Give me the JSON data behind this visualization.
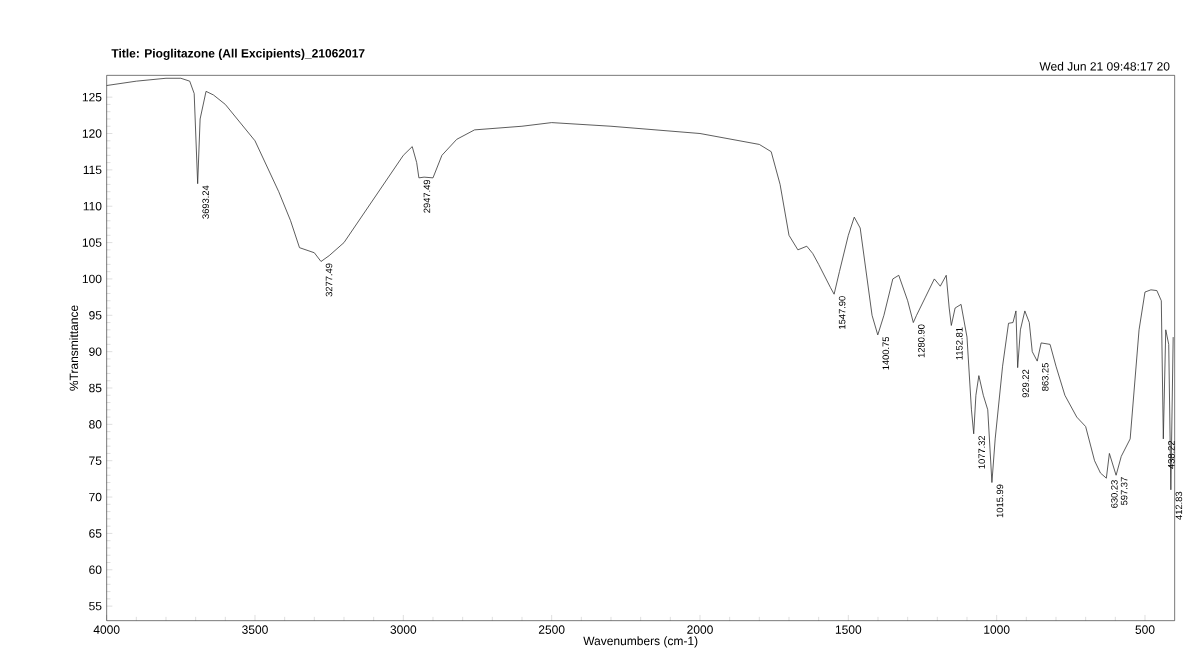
{
  "chart_data": {
    "type": "line",
    "title": "Title: Pioglitazone (All Excipients)_21062017",
    "xlabel": "Wavenumbers (cm-1)",
    "ylabel": "%Transmittance",
    "xlim": [
      4000,
      400
    ],
    "ylim": [
      53,
      128
    ],
    "xticks": [
      4000,
      3500,
      3000,
      2500,
      2000,
      1500,
      1000,
      500
    ],
    "yticks": [
      55,
      60,
      65,
      70,
      75,
      80,
      85,
      90,
      95,
      100,
      105,
      110,
      115,
      120,
      125
    ],
    "grid": false,
    "marker": "none",
    "line_style": "solid",
    "series": [
      {
        "color": "#333333",
        "x": [
          4000,
          3900,
          3800,
          3750,
          3720,
          3705,
          3693.24,
          3685,
          3665,
          3640,
          3600,
          3500,
          3420,
          3380,
          3350,
          3300,
          3277.49,
          3250,
          3200,
          3100,
          3000,
          2970,
          2955,
          2947.49,
          2930,
          2900,
          2870,
          2820,
          2760,
          2600,
          2500,
          2300,
          2000,
          1800,
          1760,
          1730,
          1700,
          1670,
          1640,
          1620,
          1600,
          1560,
          1547.9,
          1530,
          1500,
          1480,
          1460,
          1440,
          1420,
          1400.75,
          1380,
          1350,
          1330,
          1300,
          1280.9,
          1270,
          1240,
          1210,
          1190,
          1170,
          1160,
          1152.81,
          1140,
          1120,
          1100,
          1085,
          1077.32,
          1070,
          1060,
          1045,
          1030,
          1015.99,
          1005,
          980,
          960,
          945,
          935,
          929.22,
          920,
          905,
          890,
          880,
          863.25,
          850,
          820,
          800,
          770,
          730,
          700,
          670,
          650,
          630.23,
          620,
          605,
          597.37,
          580,
          550,
          520,
          500,
          480,
          460,
          445,
          438.22,
          430,
          420,
          412.83,
          405
        ],
        "values": [
          126.6,
          127.2,
          127.6,
          127.6,
          127.2,
          125.5,
          113.1,
          122,
          125.8,
          125.3,
          124,
          119,
          112,
          108,
          104.3,
          103.6,
          102.4,
          103.2,
          105,
          111,
          117,
          118.2,
          116,
          113.9,
          114,
          113.9,
          117,
          119.2,
          120.5,
          121,
          121.5,
          121,
          120,
          118.5,
          117.5,
          113,
          106,
          104,
          104.5,
          103.5,
          102,
          98.8,
          97.9,
          101,
          106,
          108.5,
          107,
          101,
          95,
          92.3,
          95,
          100,
          100.5,
          97,
          94,
          95,
          97.5,
          100,
          99,
          100.5,
          96,
          93.6,
          96,
          96.5,
          92,
          82,
          78.7,
          84,
          86.7,
          84,
          82,
          72,
          78,
          88,
          93.9,
          94,
          95.6,
          87.8,
          93,
          95.6,
          94,
          90,
          88.7,
          91.2,
          91,
          88,
          84,
          81,
          79.7,
          75,
          73.3,
          72.6,
          76,
          74,
          73,
          75.6,
          78,
          93,
          98.2,
          98.5,
          98.4,
          97,
          78,
          93,
          91,
          71,
          92
        ]
      }
    ],
    "annotations": [
      "Wed Jun 21 09:48:17 20",
      {
        "text": "3693.24",
        "x": 3693.24,
        "y": 113.1
      },
      {
        "text": "3277.49",
        "x": 3277.49,
        "y": 102.4
      },
      {
        "text": "2947.49",
        "x": 2947.49,
        "y": 113.9
      },
      {
        "text": "1547.90",
        "x": 1547.9,
        "y": 97.9
      },
      {
        "text": "1400.75",
        "x": 1400.75,
        "y": 92.3
      },
      {
        "text": "1280.90",
        "x": 1280.9,
        "y": 94
      },
      {
        "text": "1152.81",
        "x": 1152.81,
        "y": 93.6
      },
      {
        "text": "1077.32",
        "x": 1077.32,
        "y": 78.7
      },
      {
        "text": "1015.99",
        "x": 1015.99,
        "y": 72
      },
      {
        "text": "929.22",
        "x": 929.22,
        "y": 87.8
      },
      {
        "text": "863.25",
        "x": 863.25,
        "y": 88.7
      },
      {
        "text": "630.23",
        "x": 630.23,
        "y": 72.6
      },
      {
        "text": "597.37",
        "x": 597.37,
        "y": 73
      },
      {
        "text": "438.22",
        "x": 438.22,
        "y": 78
      },
      {
        "text": "412.83",
        "x": 412.83,
        "y": 71
      }
    ]
  }
}
